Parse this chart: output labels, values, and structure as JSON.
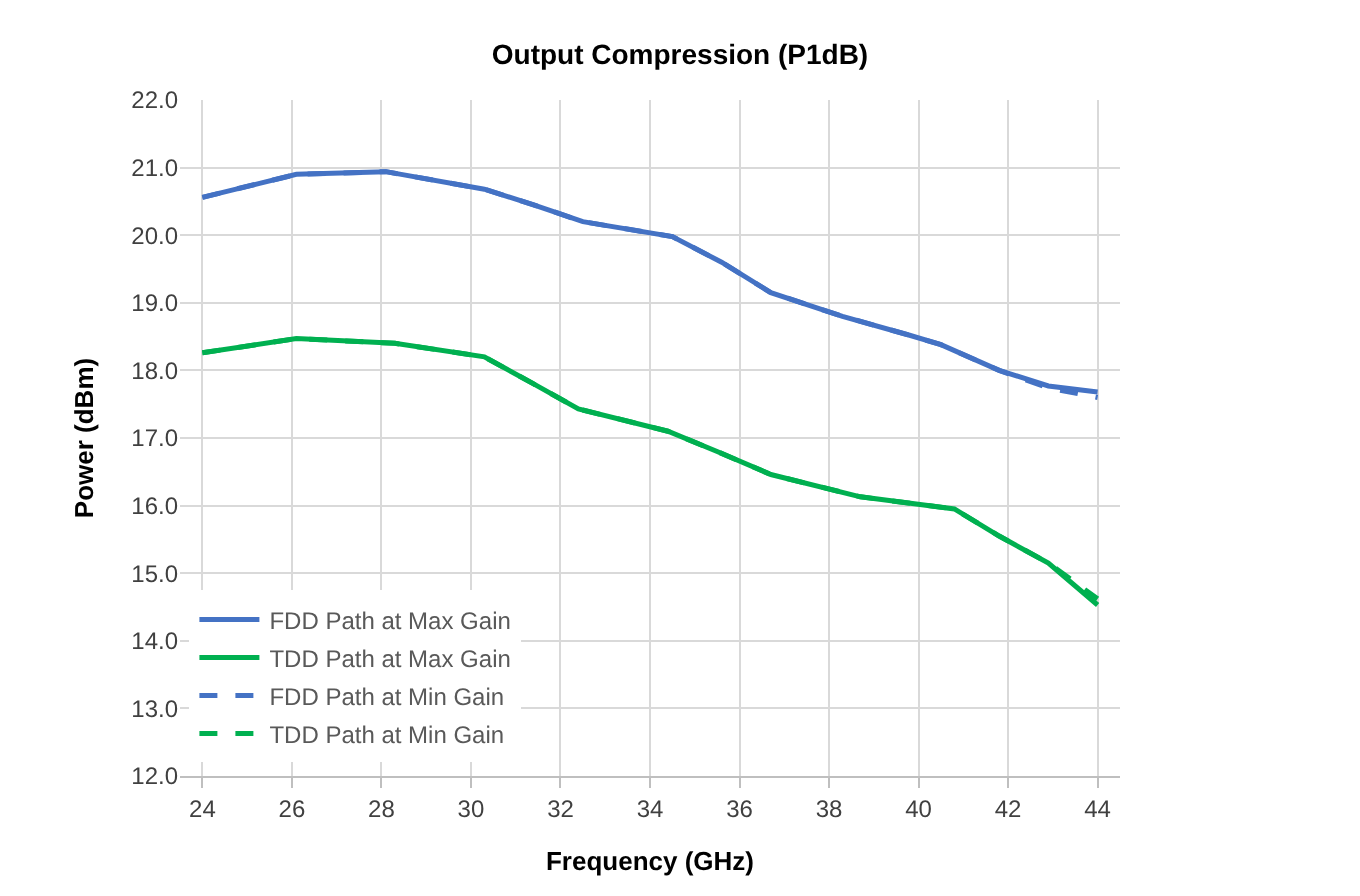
{
  "chart_data": {
    "type": "line",
    "title": "Output Compression (P1dB)",
    "xlabel": "Frequency (GHz)",
    "ylabel": "Power (dBm)",
    "xlim": [
      23.5,
      44.5
    ],
    "xticks": [
      24,
      26,
      28,
      30,
      32,
      34,
      36,
      38,
      40,
      42,
      44
    ],
    "ylim": [
      12,
      22
    ],
    "yticks": [
      {
        "value": 12,
        "label": "12.0"
      },
      {
        "value": 13,
        "label": "13.0"
      },
      {
        "value": 14,
        "label": "14.0"
      },
      {
        "value": 15,
        "label": "15.0"
      },
      {
        "value": 16,
        "label": "16.0"
      },
      {
        "value": 17,
        "label": "17.0"
      },
      {
        "value": 18,
        "label": "18.0"
      },
      {
        "value": 19,
        "label": "19.0"
      },
      {
        "value": 20,
        "label": "20.0"
      },
      {
        "value": 21,
        "label": "21.0"
      },
      {
        "value": 22,
        "label": "22.0"
      }
    ],
    "grid": true,
    "legend": "bottom left",
    "marker": "none",
    "series": [
      {
        "name": "FDD Path at Max Gain",
        "color": "#4472c4",
        "line_style": "solid",
        "x": [
          24,
          26.1,
          28.1,
          30.3,
          31.4,
          32.5,
          34.5,
          35.6,
          36.7,
          38.3,
          39.8,
          40.5,
          41.8,
          42.9,
          44
        ],
        "values": [
          20.56,
          20.9,
          20.94,
          20.68,
          20.45,
          20.2,
          19.98,
          19.6,
          19.15,
          18.8,
          18.52,
          18.38,
          18.0,
          17.77,
          17.68
        ]
      },
      {
        "name": "TDD Path at Max Gain",
        "color": "#00b050",
        "line_style": "solid",
        "x": [
          24,
          26.1,
          28.3,
          30.3,
          31.4,
          32.4,
          34.4,
          35.5,
          36.7,
          38.7,
          40.8,
          41.8,
          42.9,
          44
        ],
        "values": [
          18.26,
          18.47,
          18.4,
          18.2,
          17.8,
          17.43,
          17.1,
          16.8,
          16.46,
          16.13,
          15.95,
          15.55,
          15.15,
          14.53
        ]
      },
      {
        "name": "FDD Path at Min Gain",
        "color": "#4472c4",
        "line_style": "dashed",
        "x": [
          24,
          26.1,
          28.1,
          30.3,
          31.4,
          32.5,
          34.5,
          35.6,
          36.7,
          38.3,
          39.8,
          40.5,
          41.8,
          42.9,
          44
        ],
        "values": [
          20.56,
          20.9,
          20.94,
          20.68,
          20.45,
          20.2,
          19.98,
          19.6,
          19.15,
          18.8,
          18.52,
          18.38,
          18.0,
          17.74,
          17.6
        ]
      },
      {
        "name": "TDD Path at Min Gain",
        "color": "#00b050",
        "line_style": "dashed",
        "x": [
          24,
          26.1,
          28.3,
          30.3,
          31.4,
          32.4,
          34.4,
          35.5,
          36.7,
          38.7,
          40.8,
          41.8,
          42.9,
          44
        ],
        "values": [
          18.26,
          18.47,
          18.4,
          18.2,
          17.8,
          17.43,
          17.1,
          16.8,
          16.46,
          16.13,
          15.95,
          15.55,
          15.15,
          14.62
        ]
      }
    ]
  }
}
